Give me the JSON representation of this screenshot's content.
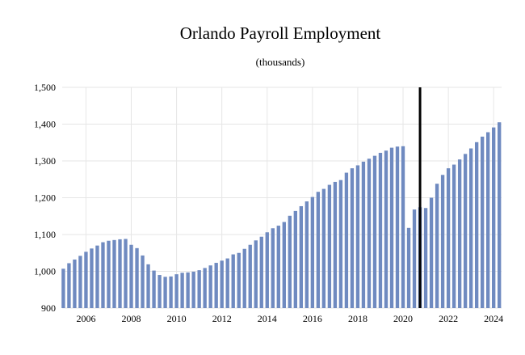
{
  "chart_data": {
    "type": "bar",
    "title": "Orlando Payroll Employment",
    "subtitle": "(thousands)",
    "xlabel": "",
    "ylabel": "",
    "ylim": [
      900,
      1500
    ],
    "yticks": [
      "900",
      "1,000",
      "1,100",
      "1,200",
      "1,300",
      "1,400",
      "1,500"
    ],
    "yticks_values": [
      900,
      1000,
      1100,
      1200,
      1300,
      1400,
      1500
    ],
    "xticks": [
      "2006",
      "2008",
      "2010",
      "2012",
      "2014",
      "2016",
      "2018",
      "2020",
      "2022",
      "2024"
    ],
    "xticks_values": [
      2006,
      2008,
      2010,
      2012,
      2014,
      2016,
      2018,
      2020,
      2022,
      2024
    ],
    "grid": true,
    "x_start": 2005.0,
    "x_step": 0.25,
    "forecast_divider_x": 2020.75,
    "values": [
      1007,
      1022,
      1032,
      1042,
      1053,
      1062,
      1070,
      1079,
      1083,
      1085,
      1087,
      1088,
      1072,
      1063,
      1043,
      1019,
      1002,
      990,
      985,
      986,
      992,
      996,
      997,
      999,
      1003,
      1009,
      1016,
      1023,
      1029,
      1035,
      1046,
      1050,
      1061,
      1072,
      1084,
      1094,
      1106,
      1117,
      1124,
      1134,
      1151,
      1164,
      1177,
      1190,
      1202,
      1216,
      1224,
      1235,
      1243,
      1248,
      1268,
      1280,
      1288,
      1298,
      1306,
      1314,
      1322,
      1328,
      1336,
      1339,
      1340,
      1118,
      1168,
      1174,
      1172,
      1200,
      1238,
      1262,
      1280,
      1290,
      1304,
      1319,
      1334,
      1351,
      1366,
      1378,
      1391,
      1405
    ]
  }
}
